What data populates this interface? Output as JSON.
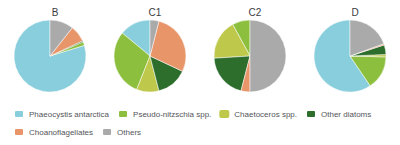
{
  "chart_data": [
    {
      "type": "pie",
      "title": "B",
      "categories": [
        "Phaeocystis antarctica",
        "Pseudo-nitzschia spp.",
        "Chaetoceros spp.",
        "Other diatoms",
        "Choanoflagellates",
        "Others"
      ],
      "values": [
        75,
        1.5,
        0,
        0.5,
        7,
        10
      ],
      "colors": [
        "#88CEDC",
        "#8DBF3F",
        "#BEC84A",
        "#2D6E2D",
        "#E8956A",
        "#AAAAAA"
      ],
      "legend": "bottom"
    },
    {
      "type": "pie",
      "title": "C1",
      "categories": [
        "Phaeocystis antarctica",
        "Pseudo-nitzschia spp.",
        "Chaetoceros spp.",
        "Other diatoms",
        "Choanoflagellates",
        "Others"
      ],
      "values": [
        14,
        30,
        10,
        14,
        28,
        4
      ],
      "colors": [
        "#88CEDC",
        "#8DBF3F",
        "#BEC84A",
        "#2D6E2D",
        "#E8956A",
        "#AAAAAA"
      ],
      "legend": "bottom"
    },
    {
      "type": "pie",
      "title": "C2",
      "categories": [
        "Phaeocystis antarctica",
        "Pseudo-nitzschia spp.",
        "Chaetoceros spp.",
        "Other diatoms",
        "Choanoflagellates",
        "Others"
      ],
      "values": [
        0,
        8,
        18,
        20,
        4,
        50
      ],
      "colors": [
        "#88CEDC",
        "#8DBF3F",
        "#BEC84A",
        "#2D6E2D",
        "#E8956A",
        "#AAAAAA"
      ],
      "legend": "bottom"
    },
    {
      "type": "pie",
      "title": "D",
      "categories": [
        "Phaeocystis antarctica",
        "Pseudo-nitzschia spp.",
        "Chaetoceros spp.",
        "Other diatoms",
        "Choanoflagellates",
        "Others"
      ],
      "values": [
        55,
        14,
        1,
        4,
        0.5,
        18
      ],
      "colors": [
        "#88CEDC",
        "#8DBF3F",
        "#BEC84A",
        "#2D6E2D",
        "#E8956A",
        "#AAAAAA"
      ],
      "legend": "bottom"
    }
  ]
}
